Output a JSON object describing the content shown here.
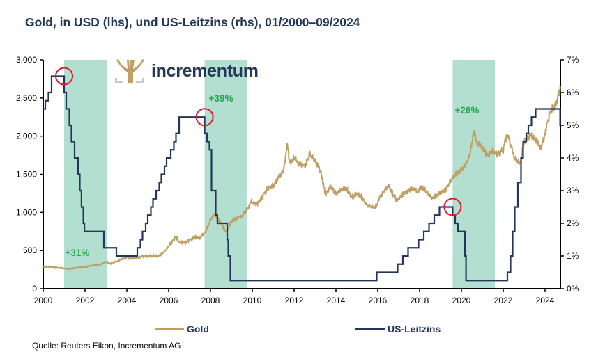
{
  "chart_data": {
    "type": "line",
    "title": "Gold, in USD (lhs), und US-Leitzins (rhs), 01/2000–09/2024",
    "source": "Quelle: Reuters Eikon, Incrementum AG",
    "logo_text": "incrementum",
    "x_range": [
      2000,
      2024.75
    ],
    "x_ticks": [
      "2000",
      "2002",
      "2004",
      "2006",
      "2008",
      "2010",
      "2012",
      "2014",
      "2016",
      "2018",
      "2020",
      "2022",
      "2024"
    ],
    "y_left": {
      "range": [
        0,
        3000
      ],
      "ticks": [
        "0",
        "500",
        "1,000",
        "1,500",
        "2,000",
        "2,500",
        "3,000"
      ]
    },
    "y_right": {
      "range": [
        0,
        7
      ],
      "ticks": [
        "0%",
        "1%",
        "2%",
        "3%",
        "4%",
        "5%",
        "6%",
        "7%"
      ]
    },
    "legend": [
      {
        "name": "Gold",
        "color": "#bf9f63"
      },
      {
        "name": "US-Leitzins",
        "color": "#24375a"
      }
    ],
    "shaded_periods": [
      {
        "start": 2001.0,
        "end": 2003.05,
        "label": "+31%"
      },
      {
        "start": 2007.72,
        "end": 2009.75,
        "label": "+39%"
      },
      {
        "start": 2019.58,
        "end": 2021.6,
        "label": "+26%"
      }
    ],
    "highlight_circles": [
      {
        "x": 2001.0,
        "rate": 6.5
      },
      {
        "x": 2007.72,
        "rate": 5.25
      },
      {
        "x": 2019.58,
        "rate": 2.5
      }
    ],
    "series": [
      {
        "name": "Gold",
        "axis": "left",
        "color": "#bf9f63",
        "points": [
          [
            2000.0,
            290
          ],
          [
            2000.25,
            285
          ],
          [
            2000.5,
            280
          ],
          [
            2000.75,
            272
          ],
          [
            2001.0,
            265
          ],
          [
            2001.25,
            260
          ],
          [
            2001.5,
            268
          ],
          [
            2001.75,
            280
          ],
          [
            2002.0,
            282
          ],
          [
            2002.25,
            300
          ],
          [
            2002.5,
            310
          ],
          [
            2002.75,
            318
          ],
          [
            2003.0,
            350
          ],
          [
            2003.2,
            330
          ],
          [
            2003.5,
            355
          ],
          [
            2003.75,
            385
          ],
          [
            2004.0,
            410
          ],
          [
            2004.25,
            395
          ],
          [
            2004.5,
            400
          ],
          [
            2004.75,
            430
          ],
          [
            2005.0,
            425
          ],
          [
            2005.25,
            430
          ],
          [
            2005.5,
            425
          ],
          [
            2005.75,
            470
          ],
          [
            2006.0,
            555
          ],
          [
            2006.35,
            690
          ],
          [
            2006.5,
            610
          ],
          [
            2006.75,
            600
          ],
          [
            2007.0,
            640
          ],
          [
            2007.25,
            670
          ],
          [
            2007.5,
            665
          ],
          [
            2007.75,
            740
          ],
          [
            2008.0,
            900
          ],
          [
            2008.2,
            980
          ],
          [
            2008.5,
            860
          ],
          [
            2008.75,
            740
          ],
          [
            2009.0,
            880
          ],
          [
            2009.25,
            920
          ],
          [
            2009.5,
            950
          ],
          [
            2009.75,
            1040
          ],
          [
            2009.95,
            1130
          ],
          [
            2010.25,
            1110
          ],
          [
            2010.5,
            1220
          ],
          [
            2010.75,
            1320
          ],
          [
            2011.0,
            1340
          ],
          [
            2011.3,
            1480
          ],
          [
            2011.5,
            1550
          ],
          [
            2011.67,
            1890
          ],
          [
            2011.8,
            1640
          ],
          [
            2012.0,
            1720
          ],
          [
            2012.2,
            1650
          ],
          [
            2012.5,
            1600
          ],
          [
            2012.75,
            1760
          ],
          [
            2013.0,
            1680
          ],
          [
            2013.25,
            1560
          ],
          [
            2013.5,
            1230
          ],
          [
            2013.75,
            1340
          ],
          [
            2014.0,
            1240
          ],
          [
            2014.25,
            1300
          ],
          [
            2014.5,
            1310
          ],
          [
            2014.75,
            1200
          ],
          [
            2015.0,
            1250
          ],
          [
            2015.25,
            1190
          ],
          [
            2015.5,
            1090
          ],
          [
            2015.9,
            1060
          ],
          [
            2016.1,
            1200
          ],
          [
            2016.5,
            1350
          ],
          [
            2016.9,
            1150
          ],
          [
            2017.25,
            1250
          ],
          [
            2017.7,
            1320
          ],
          [
            2017.9,
            1270
          ],
          [
            2018.1,
            1340
          ],
          [
            2018.6,
            1180
          ],
          [
            2018.9,
            1240
          ],
          [
            2019.25,
            1300
          ],
          [
            2019.5,
            1420
          ],
          [
            2019.75,
            1500
          ],
          [
            2020.0,
            1560
          ],
          [
            2020.2,
            1620
          ],
          [
            2020.4,
            1760
          ],
          [
            2020.6,
            2060
          ],
          [
            2020.75,
            1900
          ],
          [
            2021.0,
            1860
          ],
          [
            2021.25,
            1750
          ],
          [
            2021.5,
            1800
          ],
          [
            2021.75,
            1760
          ],
          [
            2022.0,
            1830
          ],
          [
            2022.2,
            2040
          ],
          [
            2022.5,
            1740
          ],
          [
            2022.8,
            1630
          ],
          [
            2023.0,
            1920
          ],
          [
            2023.3,
            2020
          ],
          [
            2023.6,
            1930
          ],
          [
            2023.8,
            1830
          ],
          [
            2024.0,
            2050
          ],
          [
            2024.25,
            2330
          ],
          [
            2024.5,
            2400
          ],
          [
            2024.75,
            2650
          ]
        ]
      },
      {
        "name": "US-Leitzins",
        "axis": "right",
        "color": "#24375a",
        "step": true,
        "points": [
          [
            2000.0,
            5.5
          ],
          [
            2000.1,
            5.75
          ],
          [
            2000.25,
            6.0
          ],
          [
            2000.4,
            6.5
          ],
          [
            2001.0,
            6.0
          ],
          [
            2001.1,
            5.5
          ],
          [
            2001.25,
            5.0
          ],
          [
            2001.35,
            4.5
          ],
          [
            2001.5,
            4.0
          ],
          [
            2001.67,
            3.5
          ],
          [
            2001.75,
            3.0
          ],
          [
            2001.83,
            2.5
          ],
          [
            2001.92,
            2.0
          ],
          [
            2001.97,
            1.75
          ],
          [
            2002.9,
            1.25
          ],
          [
            2003.5,
            1.0
          ],
          [
            2004.5,
            1.25
          ],
          [
            2004.65,
            1.5
          ],
          [
            2004.75,
            1.75
          ],
          [
            2004.9,
            2.0
          ],
          [
            2005.0,
            2.25
          ],
          [
            2005.15,
            2.5
          ],
          [
            2005.25,
            2.75
          ],
          [
            2005.4,
            3.0
          ],
          [
            2005.55,
            3.25
          ],
          [
            2005.65,
            3.5
          ],
          [
            2005.8,
            3.75
          ],
          [
            2005.9,
            4.0
          ],
          [
            2006.1,
            4.25
          ],
          [
            2006.25,
            4.5
          ],
          [
            2006.35,
            4.75
          ],
          [
            2006.5,
            5.25
          ],
          [
            2007.72,
            4.75
          ],
          [
            2007.83,
            4.5
          ],
          [
            2007.95,
            4.25
          ],
          [
            2008.05,
            3.0
          ],
          [
            2008.25,
            2.25
          ],
          [
            2008.33,
            2.0
          ],
          [
            2008.8,
            1.5
          ],
          [
            2008.85,
            1.0
          ],
          [
            2008.95,
            0.25
          ],
          [
            2015.95,
            0.5
          ],
          [
            2016.95,
            0.75
          ],
          [
            2017.2,
            1.0
          ],
          [
            2017.45,
            1.25
          ],
          [
            2017.95,
            1.5
          ],
          [
            2018.2,
            1.75
          ],
          [
            2018.45,
            2.0
          ],
          [
            2018.7,
            2.25
          ],
          [
            2018.95,
            2.5
          ],
          [
            2019.58,
            2.25
          ],
          [
            2019.7,
            2.0
          ],
          [
            2019.83,
            1.75
          ],
          [
            2020.17,
            1.0
          ],
          [
            2020.22,
            0.25
          ],
          [
            2022.2,
            0.5
          ],
          [
            2022.35,
            1.0
          ],
          [
            2022.45,
            1.75
          ],
          [
            2022.55,
            2.5
          ],
          [
            2022.7,
            3.25
          ],
          [
            2022.85,
            4.0
          ],
          [
            2022.95,
            4.5
          ],
          [
            2023.1,
            4.75
          ],
          [
            2023.2,
            5.0
          ],
          [
            2023.35,
            5.25
          ],
          [
            2023.55,
            5.5
          ],
          [
            2024.72,
            5.0
          ]
        ]
      }
    ]
  }
}
